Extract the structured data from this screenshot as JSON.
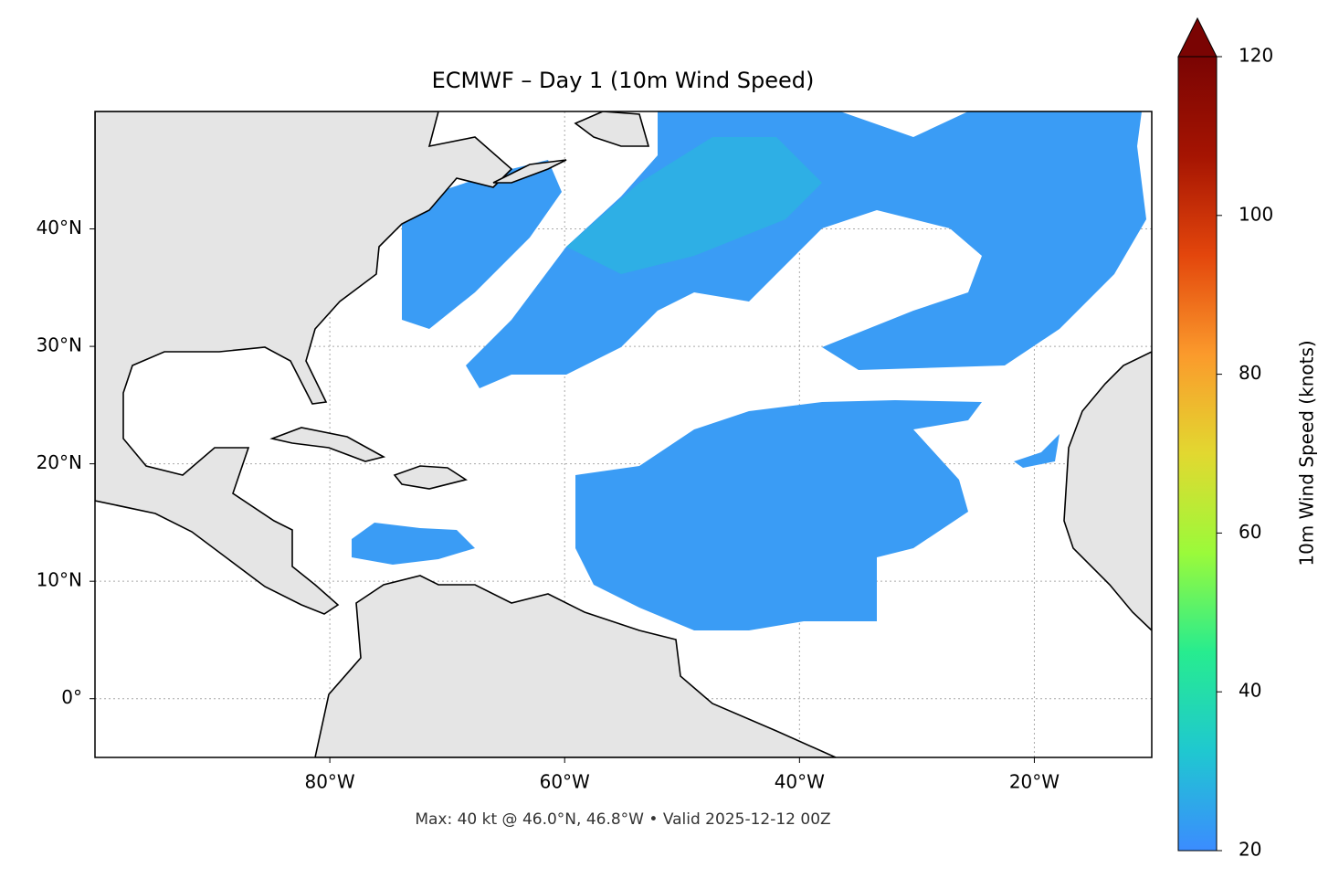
{
  "chart_data": {
    "type": "map",
    "title": "ECMWF – Day 1 (10m Wind Speed)",
    "annotation": "Max: 40 kt @ 46.0°N, 46.8°W • Valid 2025-12-12 00Z",
    "xlim": [
      -100,
      -10
    ],
    "ylim": [
      -5,
      50
    ],
    "xticks": [
      {
        "value": -80,
        "label": "80°W"
      },
      {
        "value": -60,
        "label": "60°W"
      },
      {
        "value": -40,
        "label": "40°W"
      },
      {
        "value": -20,
        "label": "20°W"
      }
    ],
    "yticks": [
      {
        "value": 0,
        "label": "0°"
      },
      {
        "value": 10,
        "label": "10°N"
      },
      {
        "value": 20,
        "label": "20°N"
      },
      {
        "value": 30,
        "label": "30°N"
      },
      {
        "value": 40,
        "label": "40°N"
      }
    ],
    "grid": true,
    "colorbar": {
      "label": "10m Wind Speed (knots)",
      "lim": [
        20,
        120
      ],
      "ticks": [
        20,
        40,
        60,
        80,
        100,
        120
      ],
      "colors": [
        "#3b8cff",
        "#1fc8d0",
        "#27ec8f",
        "#9bfa3a",
        "#e2d830",
        "#fb9a2c",
        "#e3460c",
        "#a51402",
        "#7a0403"
      ]
    }
  }
}
